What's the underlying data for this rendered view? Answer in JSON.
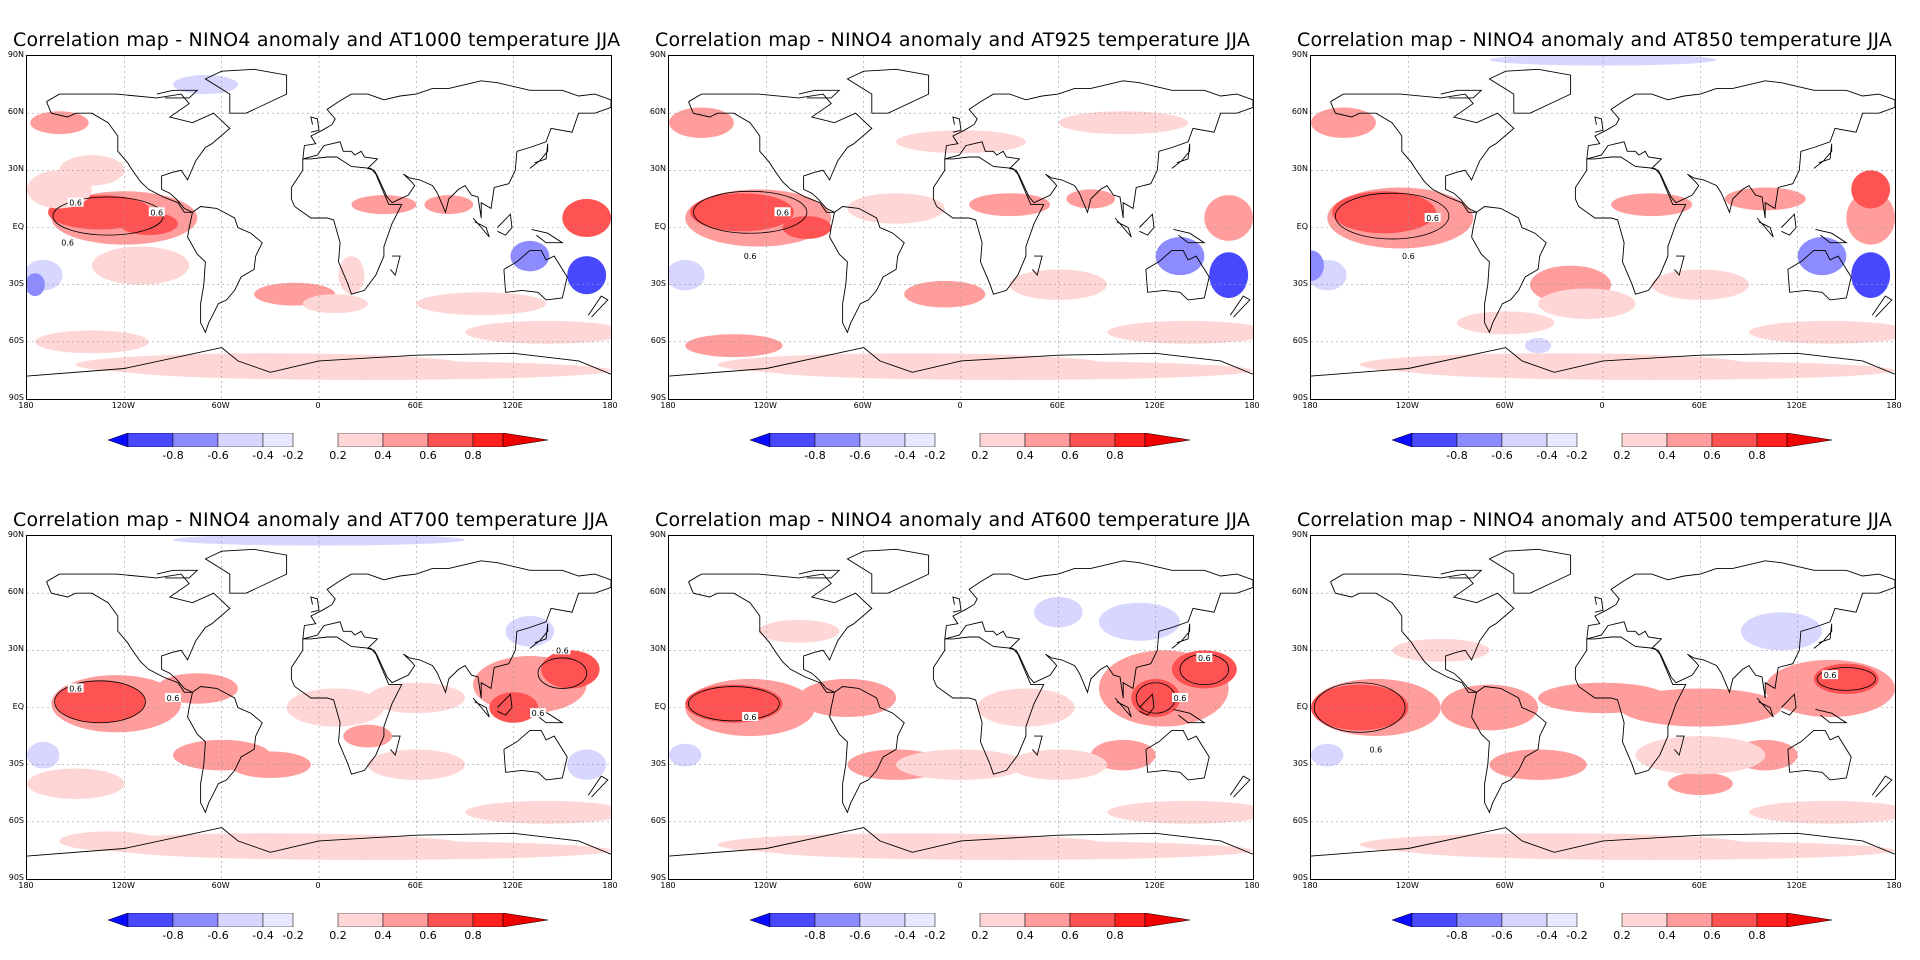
{
  "panels": [
    {
      "title": "Correlation map - NINO4 anomaly and AT1000 temperature JJA",
      "level": "1000"
    },
    {
      "title": "Correlation map - NINO4 anomaly and AT925 temperature JJA",
      "level": "925"
    },
    {
      "title": "Correlation map - NINO4 anomaly and AT850 temperature JJA",
      "level": "850"
    },
    {
      "title": "Correlation map - NINO4 anomaly and AT700 temperature JJA",
      "level": "700"
    },
    {
      "title": "Correlation map - NINO4 anomaly and AT600 temperature JJA",
      "level": "600"
    },
    {
      "title": "Correlation map - NINO4 anomaly and AT500 temperature JJA",
      "level": "500"
    }
  ],
  "lat_labels": [
    "90N",
    "60N",
    "30N",
    "EQ",
    "30S",
    "60S",
    "90S"
  ],
  "lon_labels": [
    "180",
    "120W",
    "60W",
    "0",
    "60E",
    "120E",
    "180"
  ],
  "colorbar": {
    "labels": [
      "-0.8",
      "-0.6",
      "-0.4",
      "-0.2",
      "0.2",
      "0.4",
      "0.6",
      "0.8"
    ],
    "colors": [
      "#0b0bff",
      "#4848ff",
      "#8c8cff",
      "#d6d6ff",
      "#ffffff",
      "#ffd6d6",
      "#ff9c9c",
      "#ff5252",
      "#ff2020",
      "#f00000"
    ]
  },
  "contour_label": "0.6"
}
